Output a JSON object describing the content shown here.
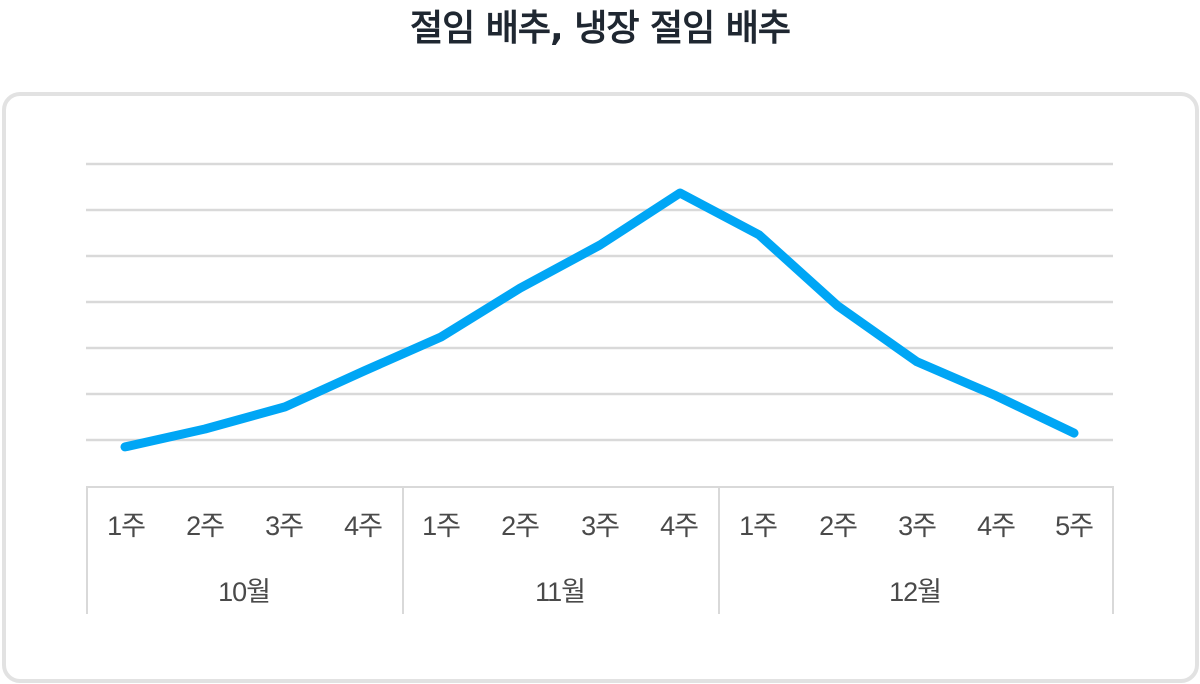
{
  "title": "절임 배추, 냉장 절임 배추",
  "colors": {
    "line": "#00A6F5",
    "grid": "#d9d9d9",
    "card_border": "#e2e2e2",
    "title": "#1f2731",
    "label": "#4a4a4a"
  },
  "x_axis": {
    "weeks": [
      "1주",
      "2주",
      "3주",
      "4주",
      "1주",
      "2주",
      "3주",
      "4주",
      "1주",
      "2주",
      "3주",
      "4주",
      "5주"
    ],
    "months": [
      {
        "label": "10월",
        "span": 4
      },
      {
        "label": "11월",
        "span": 4
      },
      {
        "label": "12월",
        "span": 5
      }
    ]
  },
  "chart_data": {
    "type": "line",
    "title": "절임 배추, 냉장 절임 배추",
    "xlabel": "",
    "ylabel": "",
    "categories": [
      "10월 1주",
      "10월 2주",
      "10월 3주",
      "10월 4주",
      "11월 1주",
      "11월 2주",
      "11월 3주",
      "11월 4주",
      "12월 1주",
      "12월 2주",
      "12월 3주",
      "12월 4주",
      "12월 5주"
    ],
    "series": [
      {
        "name": "절임 배추, 냉장 절임 배추",
        "values": [
          -0.15,
          0.24,
          0.72,
          1.5,
          2.24,
          3.3,
          4.24,
          5.37,
          4.46,
          2.91,
          1.7,
          0.96,
          0.15
        ]
      }
    ],
    "ylim": [
      0,
      6
    ],
    "grid": true,
    "gridlines": 7,
    "y_tick_labels_visible": false,
    "legend": "none",
    "note": "No y-axis values shown; values are relative positions in gridline units (bottom gridline = 0, top gridline = 6)."
  }
}
